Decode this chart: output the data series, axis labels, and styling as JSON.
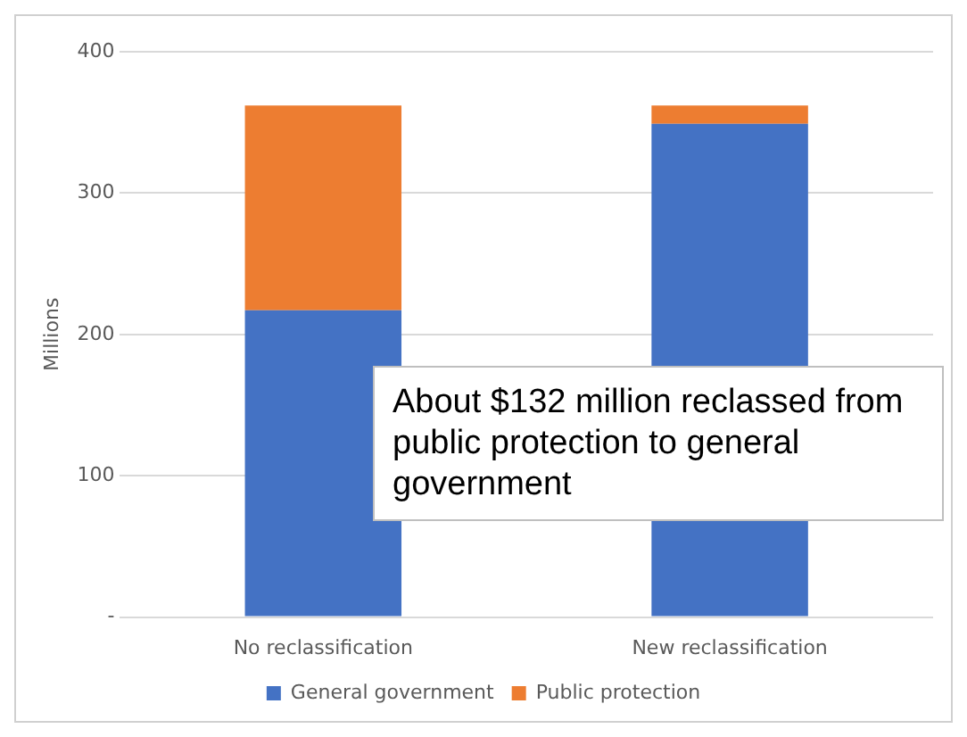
{
  "chart_data": {
    "type": "bar",
    "stacked": true,
    "ylabel": "Millions",
    "categories": [
      "No reclassification",
      "New reclassification"
    ],
    "series": [
      {
        "name": "General government",
        "color": "#4472c4",
        "values": [
          217,
          349
        ]
      },
      {
        "name": "Public protection",
        "color": "#ed7d31",
        "values": [
          145,
          13
        ]
      }
    ],
    "ylim": [
      0,
      400
    ],
    "yticks": [
      {
        "value": 0,
        "label": "-"
      },
      100,
      200,
      300,
      400
    ],
    "grid": "y",
    "legend": "bottom",
    "annotations": [
      "About $132 million reclassed from public protection to general government"
    ]
  }
}
